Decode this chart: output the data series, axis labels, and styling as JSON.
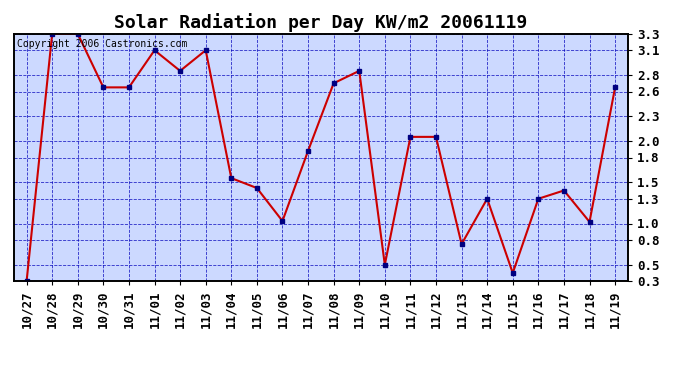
{
  "title": "Solar Radiation per Day KW/m2 20061119",
  "copyright_text": "Copyright 2006 Castronics.com",
  "x_labels": [
    "10/27",
    "10/28",
    "10/29",
    "10/30",
    "10/31",
    "11/01",
    "11/02",
    "11/03",
    "11/04",
    "11/05",
    "11/06",
    "11/07",
    "11/08",
    "11/09",
    "11/10",
    "11/11",
    "11/12",
    "11/13",
    "11/14",
    "11/15",
    "11/16",
    "11/17",
    "11/18",
    "11/19"
  ],
  "y_values": [
    0.3,
    3.3,
    3.3,
    2.65,
    2.65,
    3.1,
    2.85,
    3.1,
    1.55,
    1.43,
    1.03,
    1.88,
    2.7,
    2.85,
    0.5,
    2.05,
    2.05,
    0.75,
    1.3,
    0.4,
    1.3,
    1.4,
    1.02,
    2.65
  ],
  "ylim": [
    0.3,
    3.3
  ],
  "yticks": [
    0.3,
    0.5,
    0.8,
    1.0,
    1.3,
    1.5,
    1.8,
    2.0,
    2.3,
    2.6,
    2.8,
    3.1,
    3.3
  ],
  "ytick_labels": [
    "0.3",
    "0.5",
    "0.8",
    "1.0",
    "1.3",
    "1.5",
    "1.8",
    "2.0",
    "2.3",
    "2.6",
    "2.8",
    "3.1",
    "3.3"
  ],
  "line_color": "#cc0000",
  "marker_color": "#000080",
  "marker_style": "s",
  "marker_size": 3,
  "bg_color": "#ccd9ff",
  "grid_color": "#0000bb",
  "title_fontsize": 13,
  "tick_fontsize": 9,
  "copyright_fontsize": 7
}
